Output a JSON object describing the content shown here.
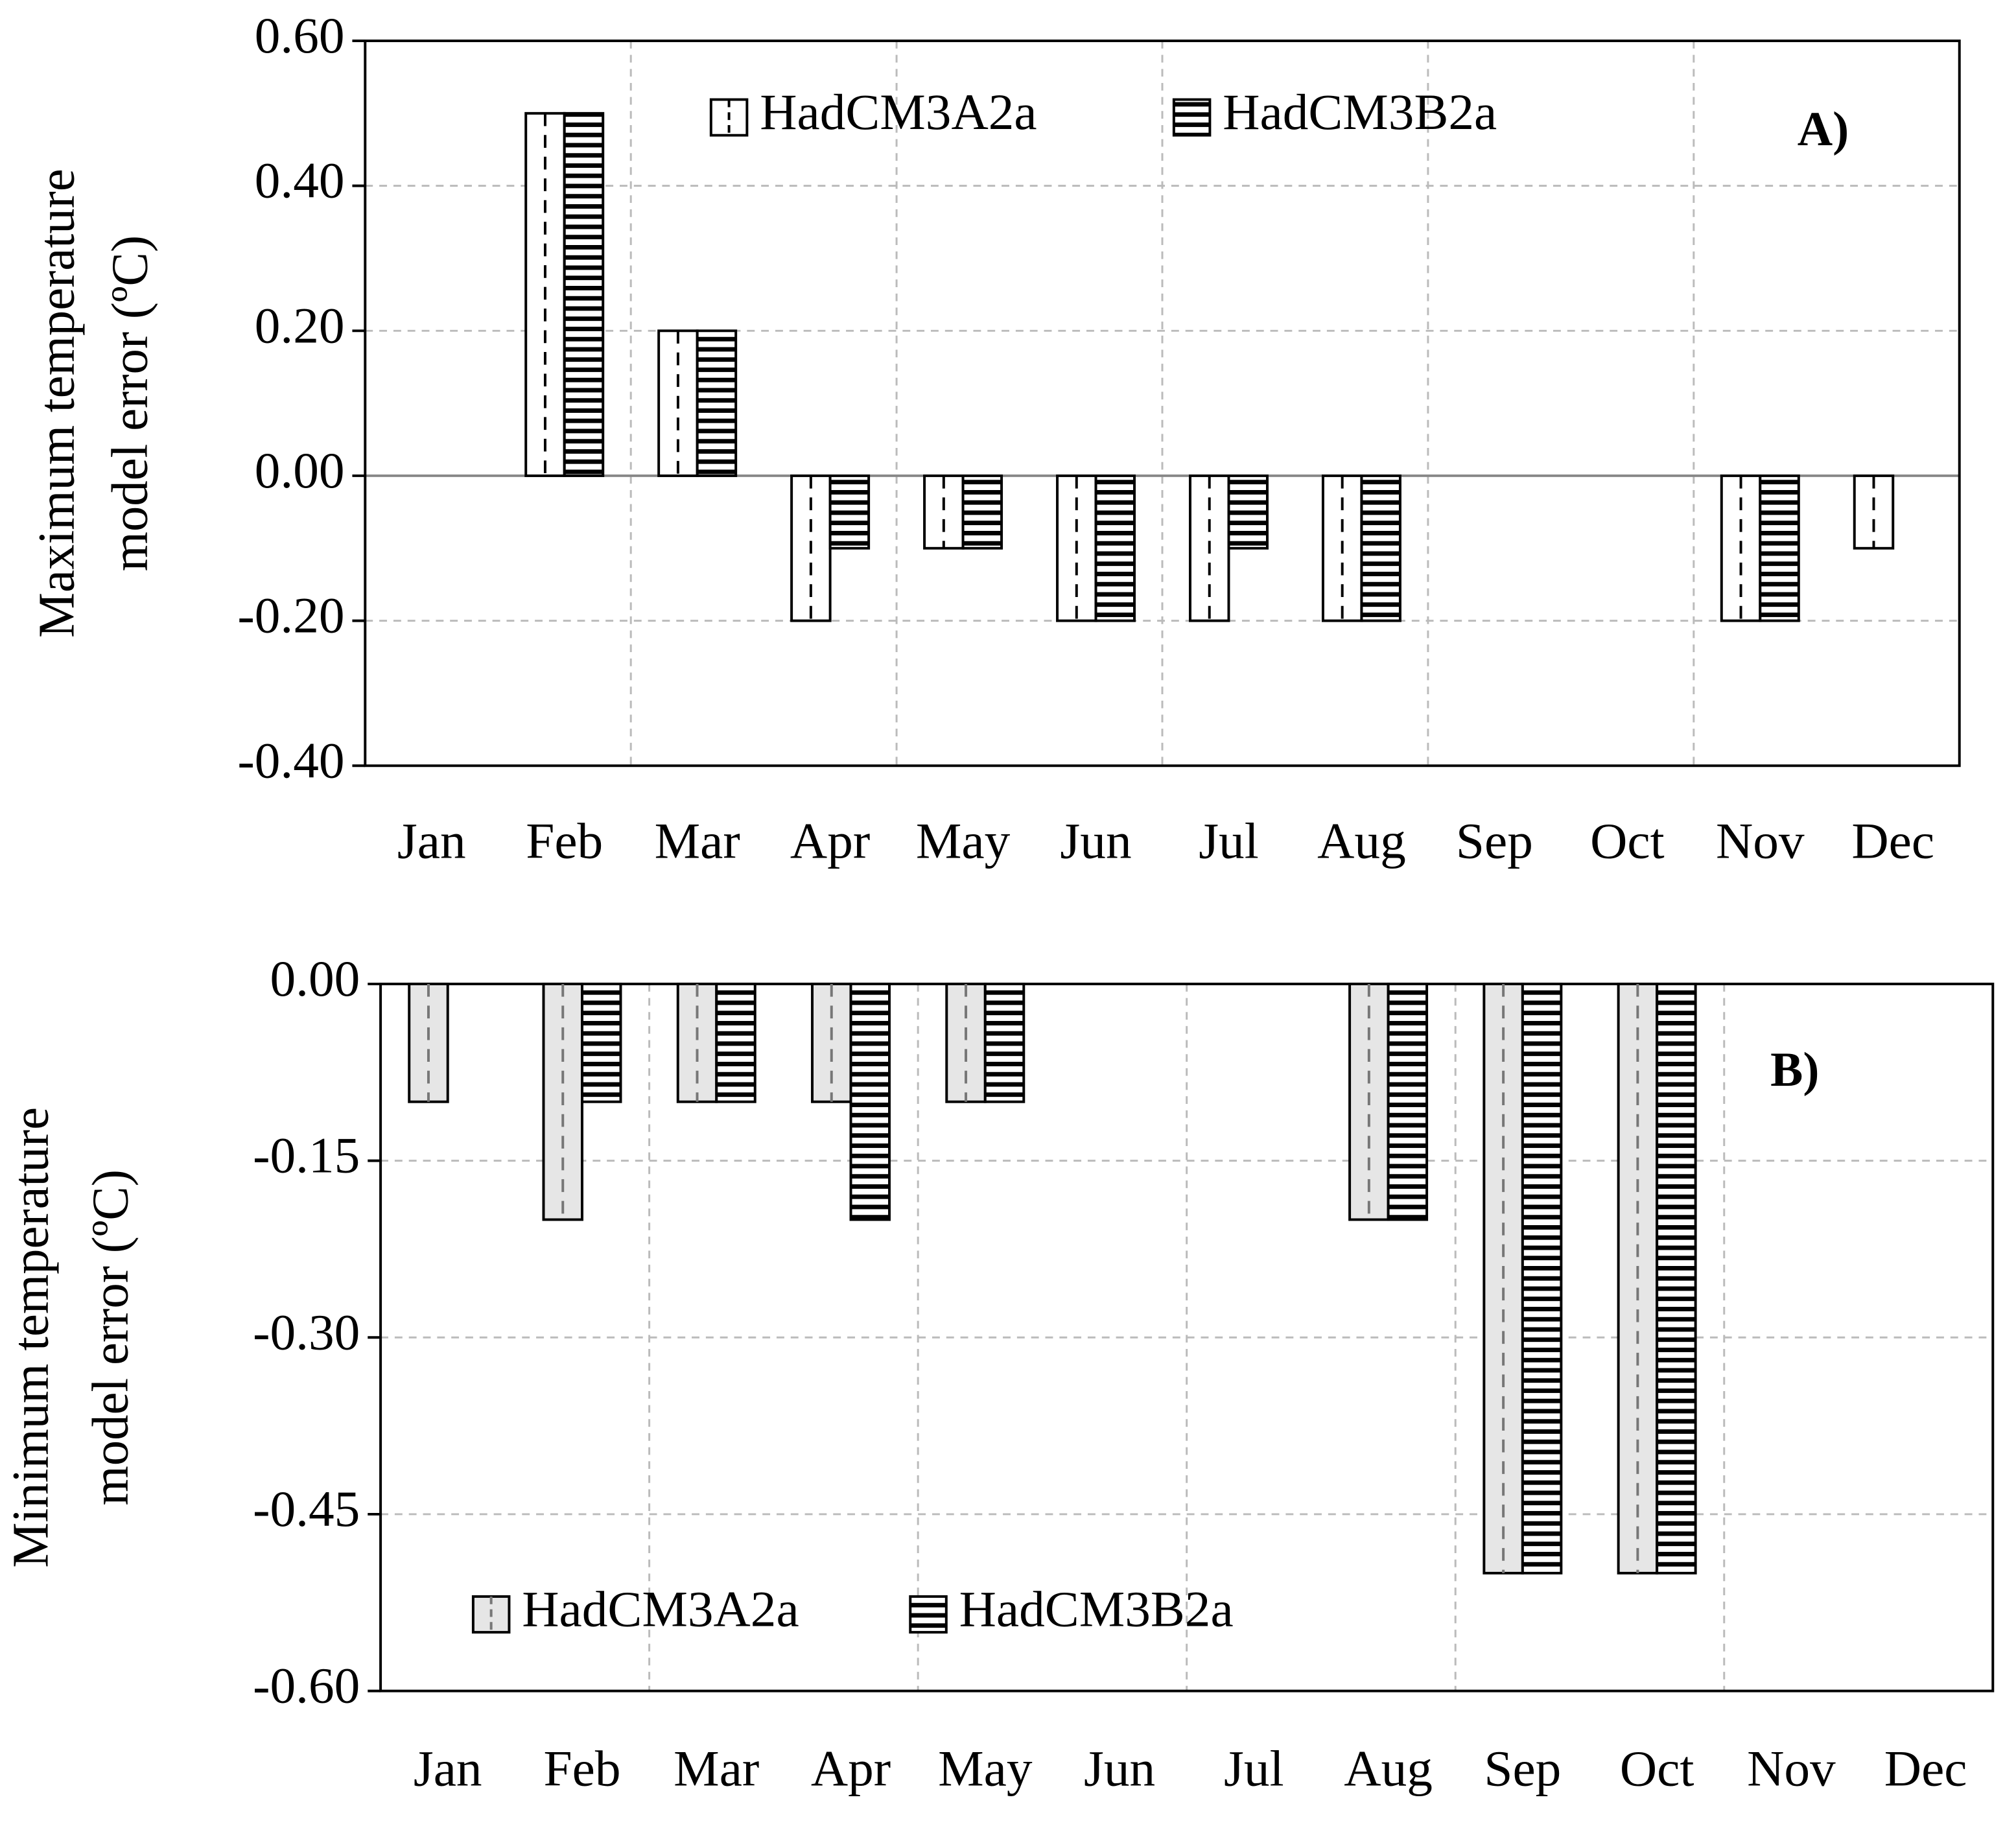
{
  "chart_data": [
    {
      "type": "bar",
      "y_label": [
        "Maximum temperature",
        "model error (ºC)"
      ],
      "annotation": "A)",
      "categories": [
        "Jan",
        "Feb",
        "Mar",
        "Apr",
        "May",
        "Jun",
        "Jul",
        "Aug",
        "Sep",
        "Oct",
        "Nov",
        "Dec"
      ],
      "series": [
        {
          "name": "HadCM3A2a",
          "color": "#ffffff",
          "values": [
            0,
            0.5,
            0.2,
            -0.2,
            -0.1,
            -0.2,
            -0.2,
            -0.2,
            0,
            0,
            -0.2,
            -0.1
          ]
        },
        {
          "name": "HadCM3B2a",
          "color": "#000000",
          "values": [
            0,
            0.5,
            0.2,
            -0.1,
            -0.1,
            -0.2,
            -0.1,
            -0.2,
            0,
            0,
            -0.2,
            0
          ]
        }
      ],
      "ylim": [
        -0.4,
        0.6
      ],
      "yticks": [
        {
          "value": -0.4,
          "label": "-0.40"
        },
        {
          "value": -0.2,
          "label": "-0.20"
        },
        {
          "value": 0,
          "label": "0.00"
        },
        {
          "value": 0.2,
          "label": "0.20"
        },
        {
          "value": 0.4,
          "label": "0.40"
        },
        {
          "value": 0.6,
          "label": "0.60"
        }
      ],
      "grid": true,
      "legend": "upper center"
    },
    {
      "type": "bar",
      "y_label": [
        "Minimum temperature",
        "model error (ºC)"
      ],
      "annotation": "B)",
      "categories": [
        "Jan",
        "Feb",
        "Mar",
        "Apr",
        "May",
        "Jun",
        "Jul",
        "Aug",
        "Sep",
        "Oct",
        "Nov",
        "Dec"
      ],
      "series": [
        {
          "name": "HadCM3A2a",
          "color": "#e6e6e6",
          "values": [
            -0.1,
            -0.2,
            -0.1,
            -0.1,
            -0.1,
            0,
            0,
            -0.2,
            -0.5,
            -0.5,
            0,
            0
          ]
        },
        {
          "name": "HadCM3B2a",
          "color": "#000000",
          "values": [
            0,
            -0.1,
            -0.1,
            -0.2,
            -0.1,
            0,
            0,
            -0.2,
            -0.5,
            -0.5,
            0,
            0
          ]
        }
      ],
      "ylim": [
        -0.6,
        0
      ],
      "yticks": [
        {
          "value": -0.6,
          "label": "-0.60"
        },
        -0.45,
        {
          "value": -0.3,
          "label": "-0.30"
        },
        -0.15,
        {
          "value": 0,
          "label": "0.00"
        }
      ],
      "grid": true,
      "legend": "lower left"
    }
  ]
}
